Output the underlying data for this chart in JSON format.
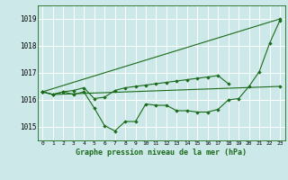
{
  "title": "Graphe pression niveau de la mer (hPa)",
  "xlabel_ticks": [
    "0",
    "1",
    "2",
    "3",
    "4",
    "5",
    "6",
    "7",
    "8",
    "9",
    "10",
    "11",
    "12",
    "13",
    "14",
    "15",
    "16",
    "17",
    "18",
    "19",
    "20",
    "21",
    "22",
    "23"
  ],
  "ylim": [
    1014.5,
    1019.5
  ],
  "yticks": [
    1015,
    1016,
    1017,
    1018,
    1019
  ],
  "xlim": [
    -0.5,
    23.5
  ],
  "bg_color": "#cce8e8",
  "grid_color": "#ffffff",
  "line_color": "#1a6b1a",
  "marker_color": "#1a6b1a",
  "series": [
    [
      1016.3,
      1016.2,
      1016.3,
      1016.2,
      1016.3,
      1015.7,
      1015.05,
      1014.85,
      1015.2,
      1015.2,
      1015.85,
      1015.8,
      1015.8,
      1015.6,
      1015.6,
      1015.55,
      1015.55,
      1015.65,
      1016.0,
      1016.05,
      1016.5,
      1017.05,
      1018.1,
      1018.95
    ],
    [
      1016.3,
      1016.2,
      1016.3,
      1016.35,
      1016.45,
      1016.05,
      1016.1,
      1016.35,
      1016.45,
      1016.5,
      1016.55,
      1016.6,
      1016.65,
      1016.7,
      1016.75,
      1016.8,
      1016.85,
      1016.9,
      1016.6,
      null,
      null,
      null,
      null,
      null
    ],
    [
      1016.3,
      1016.2,
      null,
      null,
      null,
      null,
      null,
      null,
      null,
      null,
      null,
      null,
      null,
      null,
      null,
      null,
      null,
      null,
      null,
      null,
      null,
      null,
      null,
      1016.5
    ],
    [
      1016.3,
      null,
      null,
      null,
      null,
      null,
      null,
      null,
      null,
      null,
      null,
      null,
      null,
      null,
      null,
      null,
      null,
      null,
      null,
      null,
      null,
      null,
      null,
      1019.0
    ]
  ]
}
